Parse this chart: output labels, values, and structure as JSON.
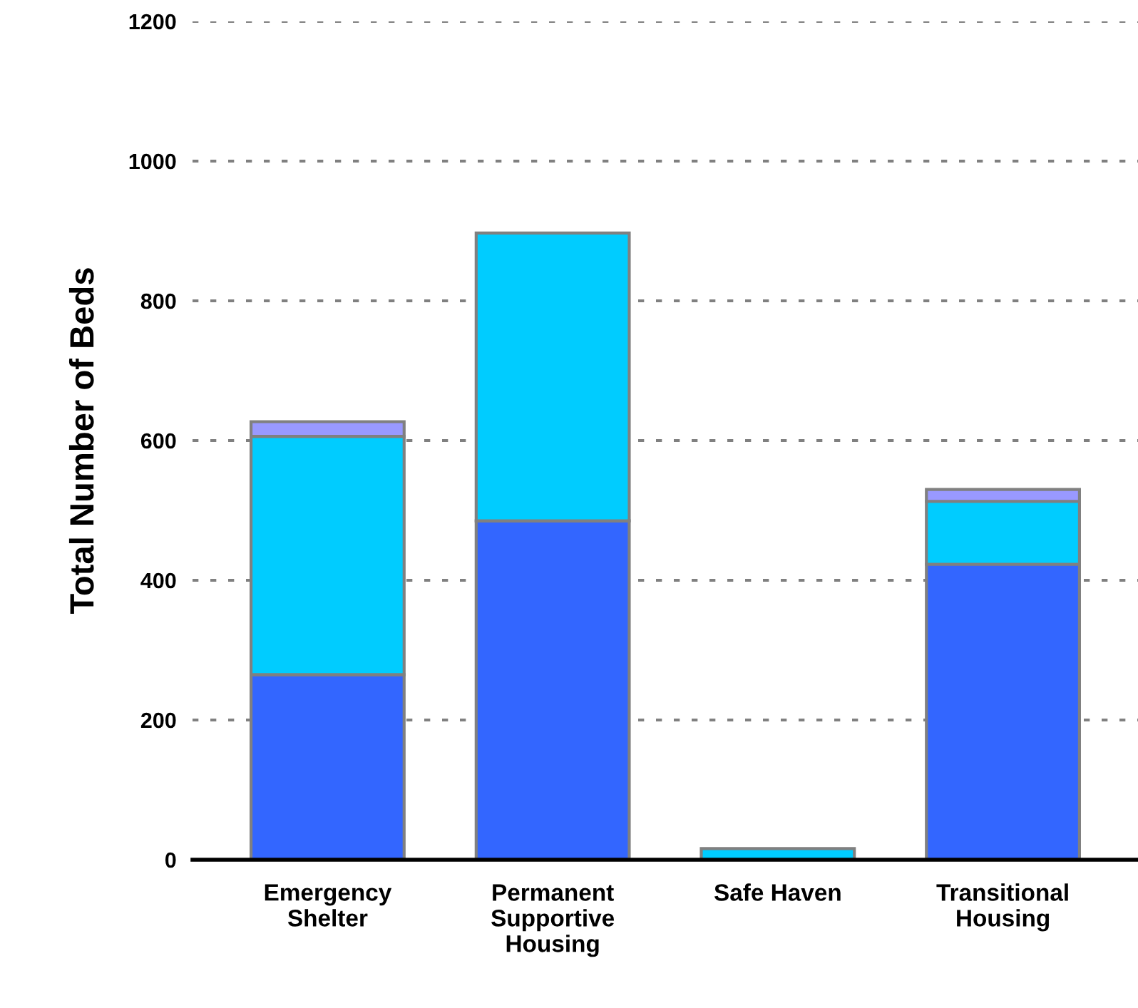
{
  "chart_data": {
    "type": "bar",
    "stacked": true,
    "ylabel": "Total Number of Beds",
    "categories": [
      "Emergency\nShelter",
      "Permanent\nSupportive\nHousing",
      "Safe Haven",
      "Transitional\nHousing"
    ],
    "series": [
      {
        "color": "#3366ff",
        "values": [
          265,
          485,
          null,
          423
        ]
      },
      {
        "color": "#00ccff",
        "values": [
          341,
          412,
          16,
          90
        ]
      },
      {
        "color": "#9999ff",
        "values": [
          21,
          null,
          null,
          17
        ]
      }
    ],
    "ylim": [
      0,
      1200
    ],
    "yticks": [
      0,
      200,
      400,
      600,
      800,
      1000,
      1200
    ],
    "grid": "y",
    "line_style": "dotted"
  }
}
